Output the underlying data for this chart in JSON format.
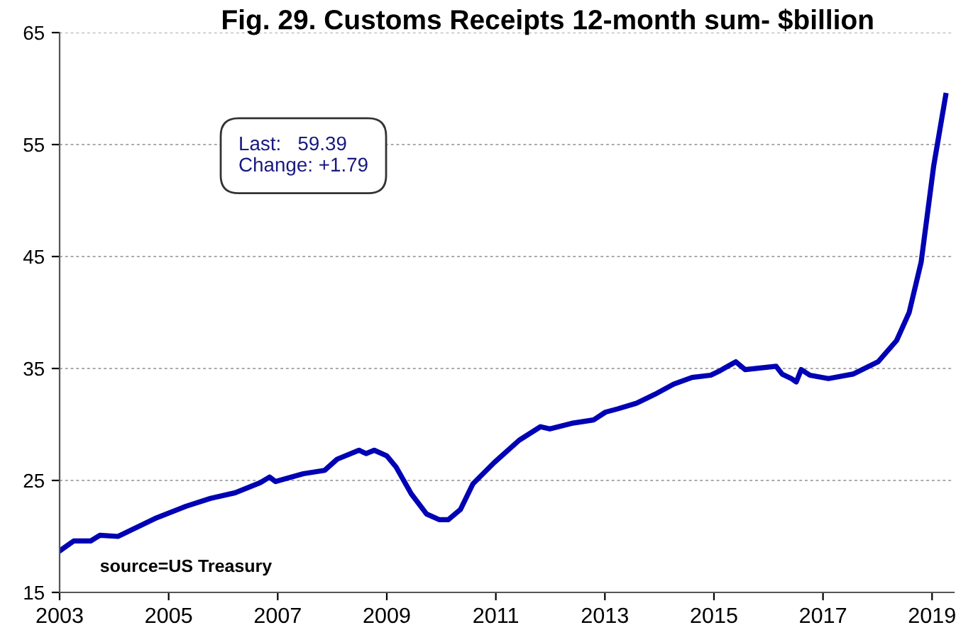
{
  "chart_data": {
    "type": "line",
    "title": "Fig. 29. Customs Receipts 12-month sum- $billion",
    "x": [
      2003.0,
      2003.26,
      2003.57,
      2003.74,
      2004.07,
      2004.75,
      2005.32,
      2005.77,
      2006.22,
      2006.68,
      2006.85,
      2006.96,
      2007.47,
      2007.86,
      2008.09,
      2008.49,
      2008.62,
      2008.77,
      2009.0,
      2009.17,
      2009.45,
      2009.73,
      2009.96,
      2010.13,
      2010.35,
      2010.58,
      2010.97,
      2011.43,
      2011.82,
      2011.99,
      2012.39,
      2012.79,
      2013.01,
      2013.24,
      2013.58,
      2013.92,
      2014.26,
      2014.6,
      2014.94,
      2015.11,
      2015.4,
      2015.57,
      2016.14,
      2016.25,
      2016.42,
      2016.51,
      2016.6,
      2016.76,
      2017.1,
      2017.55,
      2018.01,
      2018.35,
      2018.58,
      2018.8,
      2019.03,
      2019.25
    ],
    "series": [
      {
        "color": "#0000b4",
        "values": [
          18.7,
          19.6,
          19.6,
          20.1,
          20.0,
          21.6,
          22.7,
          23.4,
          23.9,
          24.8,
          25.3,
          24.9,
          25.6,
          25.9,
          26.9,
          27.7,
          27.4,
          27.7,
          27.2,
          26.2,
          23.8,
          22.0,
          21.5,
          21.5,
          22.4,
          24.7,
          26.6,
          28.6,
          29.8,
          29.6,
          30.1,
          30.4,
          31.1,
          31.4,
          31.9,
          32.7,
          33.6,
          34.2,
          34.4,
          34.8,
          35.6,
          34.9,
          35.2,
          34.5,
          34.1,
          33.8,
          34.9,
          34.4,
          34.1,
          34.5,
          35.6,
          37.5,
          40.0,
          44.5,
          53.1,
          59.39
        ]
      }
    ],
    "xlim": [
      2003,
      2019.4
    ],
    "xticks": [
      2003,
      2005,
      2007,
      2009,
      2011,
      2013,
      2015,
      2017,
      2019
    ],
    "ylim": [
      15,
      65
    ],
    "yticks": [
      15,
      25,
      35,
      45,
      55,
      65
    ],
    "grid": "y",
    "legend": false,
    "marker": "none",
    "line_style": "solid",
    "annotations": [
      "Last:   59.39\nChange: +1.79",
      "source=US Treasury"
    ]
  }
}
